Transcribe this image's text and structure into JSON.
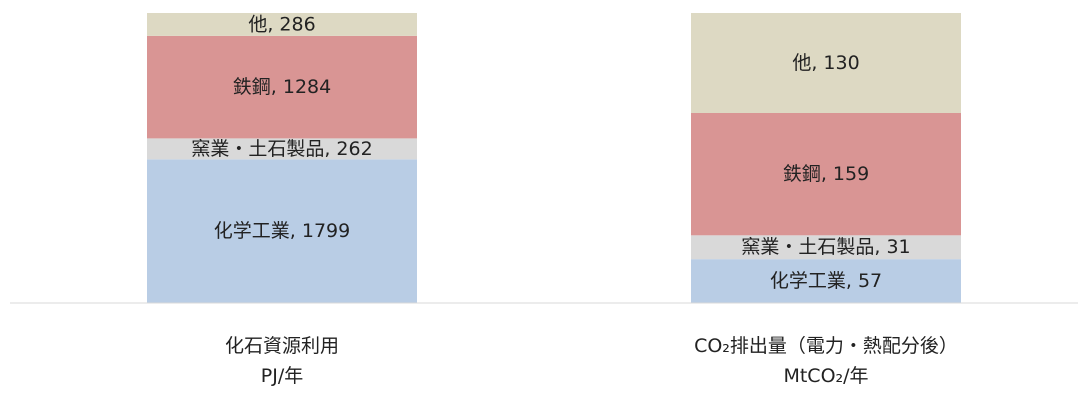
{
  "chart_data": {
    "type": "bar",
    "stacked": true,
    "normalized": true,
    "categories": [
      {
        "line1": "化石資源利用",
        "line2": "PJ/年"
      },
      {
        "line1": "CO₂排出量（電力・熱配分後）",
        "line2": "MtCO₂/年"
      }
    ],
    "series": [
      {
        "name": "化学工業",
        "color": "#b9cde5",
        "values": [
          1799,
          57
        ]
      },
      {
        "name": "窯業・土石製品",
        "color": "#d9d9d9",
        "values": [
          262,
          31
        ]
      },
      {
        "name": "鉄鋼",
        "color": "#d99594",
        "values": [
          1284,
          159
        ]
      },
      {
        "name": "他",
        "color": "#ddd9c3",
        "values": [
          286,
          130
        ]
      }
    ],
    "segment_labels": [
      [
        "化学工業, 1799",
        "化学工業, 57"
      ],
      [
        "窯業・土石製品, 262",
        "窯業・土石製品, 31"
      ],
      [
        "鉄鋼, 1284",
        "鉄鋼, 159"
      ],
      [
        "他, 286",
        "他, 130"
      ]
    ],
    "legend": "none",
    "grid": false
  }
}
